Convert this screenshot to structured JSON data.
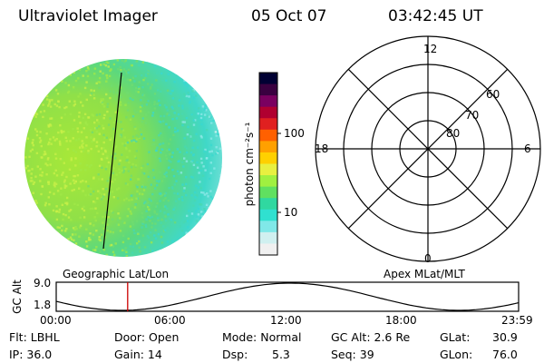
{
  "header": {
    "title": "Ultraviolet Imager",
    "date": "05 Oct 07",
    "time": "03:42:45 UT"
  },
  "image_panel": {
    "map_label": "Geographic Lat/Lon"
  },
  "colorbar": {
    "unit_label": "photon cm⁻²s⁻¹",
    "tick_100": "100",
    "tick_10": "10",
    "scale": "log",
    "colors": [
      "#000033",
      "#3a0040",
      "#7a0060",
      "#b00030",
      "#e02020",
      "#ff6000",
      "#ffa000",
      "#ffd000",
      "#e8f040",
      "#a0f040",
      "#60e060",
      "#30d8a0",
      "#30e0d0",
      "#80e8e8",
      "#d0f0f0",
      "#f0f0f0"
    ]
  },
  "polar_plot": {
    "label": "Apex MLat/MLT",
    "mlt_top": "12",
    "mlt_left": "18",
    "mlt_right": "6",
    "mlt_bottom": "0",
    "lat_60": "60",
    "lat_70": "70",
    "lat_80": "80"
  },
  "orbit_plot": {
    "ylabel": "GC Alt",
    "y_top": "9.0",
    "y_bottom": "1.8",
    "x_ticks": [
      "00:00",
      "06:00",
      "12:00",
      "18:00",
      "23:59"
    ],
    "marker_time_hours": 3.71,
    "marker_color": "#cc0000"
  },
  "status": {
    "flt": "Flt: LBHL",
    "ip": "IP: 36.0",
    "door": "Door: Open",
    "gain": "Gain: 14",
    "mode": "Mode: Normal",
    "dsp": "Dsp:",
    "dsp_value": "5.3",
    "gc_alt": "GC Alt: 2.6 Re",
    "seq": "Seq: 39",
    "glat": "GLat:",
    "glat_value": "30.9",
    "glon": "GLon:",
    "glon_value": "76.0"
  }
}
